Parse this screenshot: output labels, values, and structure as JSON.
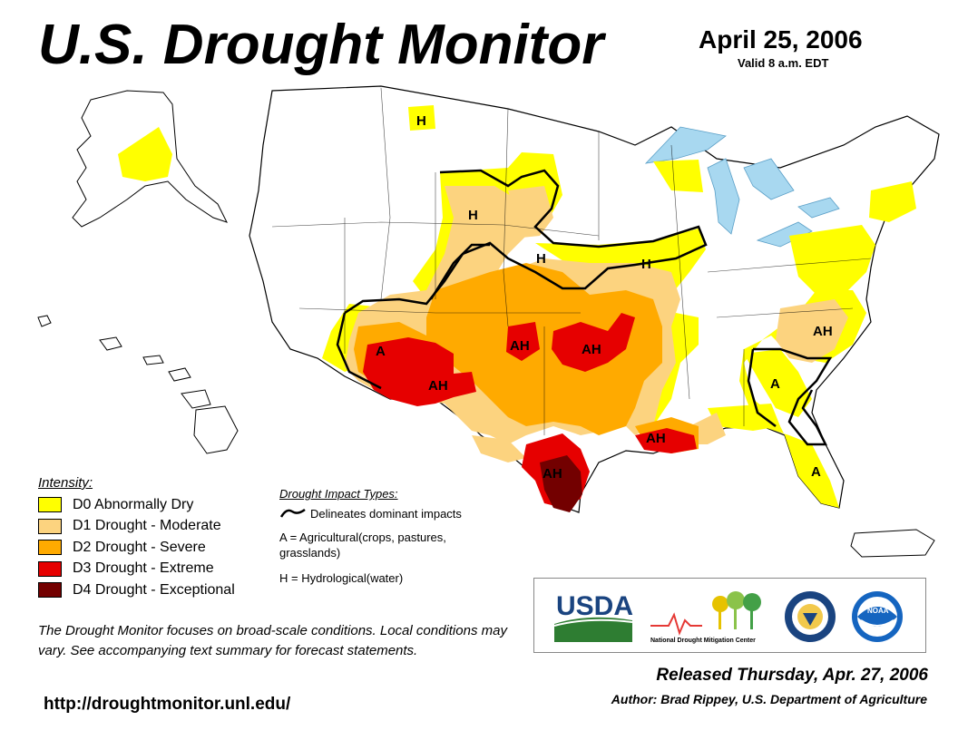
{
  "header": {
    "title": "U.S. Drought Monitor",
    "date": "April 25, 2006",
    "valid": "Valid 8 a.m. EDT"
  },
  "legend": {
    "title": "Intensity:",
    "items": [
      {
        "code": "D0",
        "label": "D0 Abnormally Dry",
        "color": "#FFFF00"
      },
      {
        "code": "D1",
        "label": "D1 Drought - Moderate",
        "color": "#FCD37F"
      },
      {
        "code": "D2",
        "label": "D2 Drought - Severe",
        "color": "#FFAA00"
      },
      {
        "code": "D3",
        "label": "D3 Drought - Extreme",
        "color": "#E60000"
      },
      {
        "code": "D4",
        "label": "D4 Drought - Exceptional",
        "color": "#730000"
      }
    ]
  },
  "impacts": {
    "title": "Drought Impact Types:",
    "delineates": "Delineates dominant impacts",
    "agricultural": "A = Agricultural(crops, pastures, grasslands)",
    "hydrological": "H = Hydrological(water)"
  },
  "map_labels": {
    "h_montana": "H",
    "h_dakotas": "H",
    "h_nebraska": "H",
    "h_iowa": "H",
    "a_arizona": "A",
    "ah_arizona": "AH",
    "ah_panhandle": "AH",
    "ah_oklahoma": "AH",
    "ah_louisiana": "AH",
    "ah_south_texas": "AH",
    "ah_carolina": "AH",
    "a_southeast": "A",
    "a_florida": "A"
  },
  "footer": {
    "note": "The Drought Monitor focuses on broad-scale conditions. Local conditions may vary. See accompanying text summary for forecast statements.",
    "url": "http://droughtmonitor.unl.edu/",
    "released": "Released Thursday, Apr. 27, 2006",
    "author": "Author: Brad Rippey, U.S. Department of Agriculture"
  },
  "logos": {
    "usda": "USDA",
    "ndmc": "National Drought Mitigation Center",
    "doc_icon": "commerce-seal-icon",
    "noaa": "NOAA"
  },
  "colors": {
    "water": "#A8D8F0",
    "border": "#000000",
    "impact_line": "#000000"
  }
}
